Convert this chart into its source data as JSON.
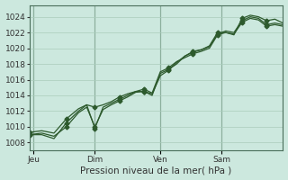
{
  "xlabel": "Pression niveau de la mer( hPa )",
  "bg_color": "#cce8de",
  "grid_color": "#aaccbb",
  "line_color": "#2d5a2d",
  "marker_color": "#2d5a2d",
  "ylim": [
    1007,
    1025.5
  ],
  "yticks": [
    1008,
    1010,
    1012,
    1014,
    1016,
    1018,
    1020,
    1022,
    1024
  ],
  "day_labels": [
    "Jeu",
    "Dim",
    "Ven",
    "Sam"
  ],
  "day_positions": [
    0.5,
    8.0,
    16.0,
    23.5
  ],
  "vline_positions": [
    0.5,
    8.0,
    16.0,
    23.5
  ],
  "xlim": [
    0,
    31
  ],
  "line1_x": [
    0,
    1.5,
    3,
    4.5,
    6,
    7,
    8,
    9,
    10,
    11,
    12,
    13,
    14,
    15,
    16,
    17,
    18,
    19,
    20,
    21,
    22,
    23,
    24,
    25,
    26,
    27,
    28,
    29,
    30,
    31
  ],
  "line1_y": [
    1009.0,
    1009.2,
    1008.8,
    1010.0,
    1011.8,
    1012.5,
    1010.0,
    1012.2,
    1012.8,
    1013.3,
    1013.8,
    1014.4,
    1014.5,
    1014.2,
    1016.5,
    1017.2,
    1018.2,
    1019.0,
    1019.6,
    1019.8,
    1020.3,
    1022.0,
    1022.0,
    1021.8,
    1023.3,
    1023.8,
    1023.6,
    1022.8,
    1023.0,
    1022.8
  ],
  "line2_x": [
    0,
    1.5,
    3,
    4.5,
    6,
    7,
    8,
    9,
    10,
    11,
    12,
    13,
    14,
    15,
    16,
    17,
    18,
    19,
    20,
    21,
    22,
    23,
    24,
    25,
    26,
    27,
    28,
    29,
    30,
    31
  ],
  "line2_y": [
    1009.3,
    1009.5,
    1009.2,
    1011.0,
    1012.3,
    1012.8,
    1012.5,
    1012.8,
    1013.2,
    1013.8,
    1014.2,
    1014.5,
    1014.8,
    1014.3,
    1017.0,
    1017.5,
    1018.3,
    1018.8,
    1019.3,
    1019.6,
    1020.0,
    1021.7,
    1022.0,
    1021.7,
    1023.8,
    1024.2,
    1024.0,
    1023.5,
    1023.7,
    1023.2
  ],
  "line3_x": [
    0,
    1.5,
    3,
    4.5,
    6,
    7,
    8,
    9,
    10,
    11,
    12,
    13,
    14,
    15,
    16,
    17,
    18,
    19,
    20,
    21,
    22,
    23,
    24,
    25,
    26,
    27,
    28,
    29,
    30,
    31
  ],
  "line3_y": [
    1009.0,
    1009.0,
    1008.5,
    1010.5,
    1012.0,
    1012.8,
    1009.8,
    1012.5,
    1013.0,
    1013.5,
    1014.0,
    1014.5,
    1014.5,
    1014.0,
    1016.8,
    1017.3,
    1018.0,
    1019.0,
    1019.5,
    1019.8,
    1020.2,
    1021.8,
    1022.2,
    1022.0,
    1023.5,
    1024.0,
    1023.8,
    1023.0,
    1023.2,
    1023.0
  ],
  "marker_every": 3,
  "markersize": 2.5,
  "linewidth": 0.9,
  "xlabel_fontsize": 7.5,
  "tick_fontsize": 6.5
}
